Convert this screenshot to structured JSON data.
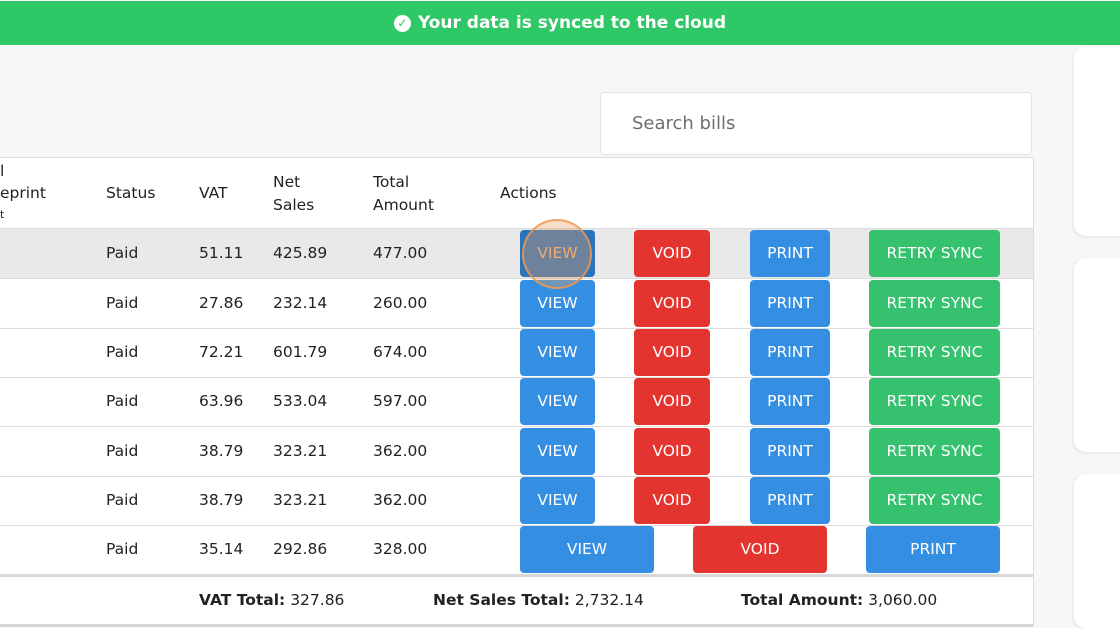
{
  "banner": {
    "icon": "check-circle-icon",
    "text": "Your data is synced to the cloud",
    "color": "#2ec866"
  },
  "search": {
    "placeholder": "Search bills",
    "value": ""
  },
  "table": {
    "headers": {
      "partial_top": "l",
      "partial_mid": "eprint",
      "partial_bot": "t",
      "status": "Status",
      "vat": "VAT",
      "net_sales_1": "Net",
      "net_sales_2": "Sales",
      "total_amount_1": "Total",
      "total_amount_2": "Amount",
      "actions": "Actions"
    },
    "rows": [
      {
        "status": "Paid",
        "vat": "51.11",
        "net_sales": "425.89",
        "total": "477.00"
      },
      {
        "status": "Paid",
        "vat": "27.86",
        "net_sales": "232.14",
        "total": "260.00"
      },
      {
        "status": "Paid",
        "vat": "72.21",
        "net_sales": "601.79",
        "total": "674.00"
      },
      {
        "status": "Paid",
        "vat": "63.96",
        "net_sales": "533.04",
        "total": "597.00"
      },
      {
        "status": "Paid",
        "vat": "38.79",
        "net_sales": "323.21",
        "total": "362.00"
      },
      {
        "status": "Paid",
        "vat": "38.79",
        "net_sales": "323.21",
        "total": "362.00"
      },
      {
        "status": "Paid",
        "vat": "35.14",
        "net_sales": "292.86",
        "total": "328.00"
      }
    ],
    "buttons": {
      "view": "VIEW",
      "void": "VOID",
      "print": "PRINT",
      "retry_sync": "RETRY SYNC"
    }
  },
  "totals": {
    "vat_label": "VAT Total:",
    "vat_value": "327.86",
    "net_label": "Net Sales Total:",
    "net_value": "2,732.14",
    "amount_label": "Total Amount:",
    "amount_value": "3,060.00"
  },
  "colors": {
    "view": "#348fe2",
    "void": "#e3342f",
    "print": "#348fe2",
    "retry": "#35c16d"
  }
}
